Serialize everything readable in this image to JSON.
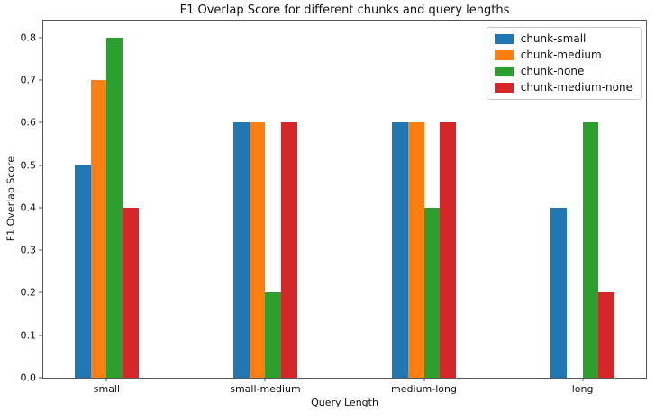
{
  "chart_data": {
    "type": "bar",
    "title": "F1 Overlap Score for different chunks and query lengths",
    "xlabel": "Query Length",
    "ylabel": "F1 Overlap Score",
    "categories": [
      "small",
      "small-medium",
      "medium-long",
      "long"
    ],
    "series": [
      {
        "name": "chunk-small",
        "color": "#1f77b4",
        "values": [
          0.5,
          0.6,
          0.6,
          0.4
        ]
      },
      {
        "name": "chunk-medium",
        "color": "#ff7f0e",
        "values": [
          0.7,
          0.6,
          0.6,
          0.0
        ]
      },
      {
        "name": "chunk-none",
        "color": "#2ca02c",
        "values": [
          0.8,
          0.2,
          0.4,
          0.6
        ]
      },
      {
        "name": "chunk-medium-none",
        "color": "#d62728",
        "values": [
          0.4,
          0.6,
          0.6,
          0.2
        ]
      }
    ],
    "yticks": [
      0.0,
      0.1,
      0.2,
      0.3,
      0.4,
      0.5,
      0.6,
      0.7,
      0.8
    ],
    "ylim": [
      0,
      0.84
    ],
    "xlim": [
      -0.4,
      3.4
    ],
    "bar_width": 0.1,
    "legend_position": "upper right",
    "grid": false,
    "background_color": "#ffffff",
    "spine_color": "#555555"
  }
}
